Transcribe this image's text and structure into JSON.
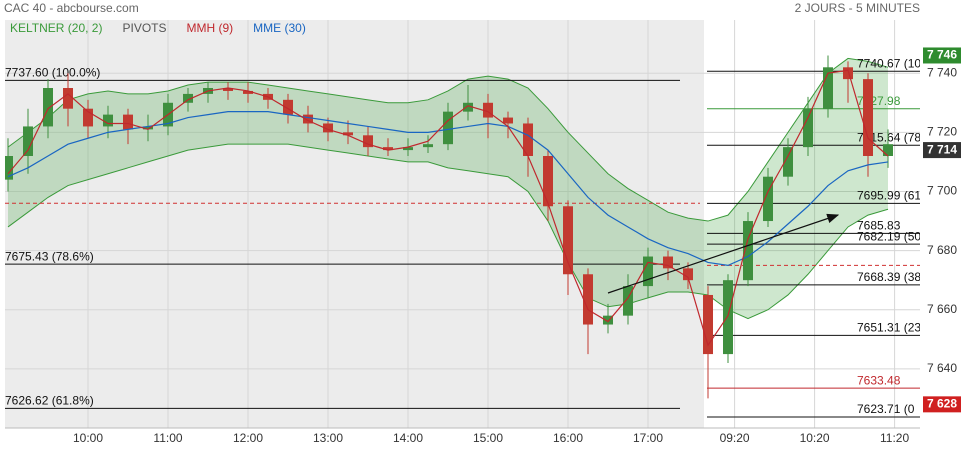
{
  "chart_data": {
    "type": "candlestick",
    "title": "CAC 40 - abcbourse.com",
    "subtitle": "2 JOURS - 5 MINUTES",
    "legend": [
      {
        "name": "KELTNER (20, 2)",
        "color": "#3a9a3a"
      },
      {
        "name": "PIVOTS",
        "color": "#555555"
      },
      {
        "name": "MMH (9)",
        "color": "#c0282d"
      },
      {
        "name": "MME (30)",
        "color": "#1a66c2"
      }
    ],
    "xlim": [
      -0.15,
      45.6
    ],
    "xticks": [
      {
        "value": 4,
        "label": "10:00"
      },
      {
        "value": 8,
        "label": "11:00"
      },
      {
        "value": 12,
        "label": "12:00"
      },
      {
        "value": 16,
        "label": "13:00"
      },
      {
        "value": 20,
        "label": "14:00"
      },
      {
        "value": 24,
        "label": "15:00"
      },
      {
        "value": 28,
        "label": "16:00"
      },
      {
        "value": 32,
        "label": "17:00"
      },
      {
        "value": 36.33,
        "label": "09:20"
      },
      {
        "value": 40.33,
        "label": "10:20"
      },
      {
        "value": 44.33,
        "label": "11:20"
      }
    ],
    "ylim": [
      7620,
      7758
    ],
    "yticks": [
      {
        "value": 7740,
        "label": "7 740"
      },
      {
        "value": 7720,
        "label": "7 720"
      },
      {
        "value": 7700,
        "label": "7 700"
      },
      {
        "value": 7680,
        "label": "7 680"
      },
      {
        "value": 7660,
        "label": "7 660"
      },
      {
        "value": 7640,
        "label": "7 640"
      }
    ],
    "grid": true,
    "up_color": "#3f8f3f",
    "down_color": "#c23a30",
    "candles": {
      "open": [
        7704,
        7712,
        7722,
        7735,
        7728,
        7722,
        7726,
        7721,
        7722,
        7730,
        7733,
        7735,
        7734,
        7733,
        7731,
        7726,
        7723,
        7720,
        7719,
        7715,
        7714,
        7715,
        7716,
        7727,
        7730,
        7725,
        7723,
        7712,
        7695,
        7672,
        7655,
        7658,
        7668,
        7678,
        7674,
        7665,
        7645,
        7670,
        7690,
        7705,
        7715,
        7728,
        7742,
        7738,
        7712
      ],
      "high": [
        7718,
        7728,
        7738,
        7740,
        7731,
        7729,
        7728,
        7726,
        7733,
        7735,
        7737,
        7737,
        7737,
        7735,
        7733,
        7729,
        7725,
        7724,
        7722,
        7718,
        7718,
        7719,
        7730,
        7736,
        7733,
        7727,
        7725,
        7714,
        7697,
        7674,
        7662,
        7672,
        7681,
        7680,
        7676,
        7668,
        7672,
        7693,
        7708,
        7718,
        7732,
        7746,
        7744,
        7740,
        7721
      ],
      "low": [
        7700,
        7706,
        7718,
        7722,
        7718,
        7718,
        7716,
        7717,
        7719,
        7727,
        7730,
        7731,
        7730,
        7728,
        7723,
        7720,
        7717,
        7716,
        7712,
        7712,
        7712,
        7713,
        7714,
        7724,
        7718,
        7718,
        7705,
        7690,
        7665,
        7645,
        7652,
        7655,
        7664,
        7670,
        7667,
        7630,
        7642,
        7668,
        7688,
        7702,
        7712,
        7725,
        7730,
        7705,
        7708
      ],
      "close": [
        7712,
        7722,
        7735,
        7728,
        7722,
        7726,
        7721,
        7722,
        7730,
        7733,
        7735,
        7734,
        7733,
        7731,
        7726,
        7723,
        7720,
        7719,
        7715,
        7714,
        7715,
        7716,
        7727,
        7730,
        7725,
        7723,
        7712,
        7695,
        7672,
        7655,
        7658,
        7668,
        7678,
        7674,
        7670,
        7645,
        7670,
        7690,
        7705,
        7715,
        7728,
        7742,
        7738,
        7712,
        7716
      ]
    },
    "mmh": [
      7706,
      7714,
      7728,
      7733,
      7727,
      7723,
      7723,
      7721,
      7726,
      7731,
      7734,
      7735,
      7734,
      7732,
      7728,
      7724,
      7721,
      7719,
      7716,
      7714,
      7715,
      7717,
      7724,
      7729,
      7727,
      7722,
      7712,
      7696,
      7676,
      7660,
      7656,
      7664,
      7676,
      7675,
      7671,
      7648,
      7658,
      7684,
      7700,
      7712,
      7725,
      7740,
      7741,
      7718,
      7712
    ],
    "mme": [
      7705,
      7708,
      7712,
      7716,
      7718,
      7720,
      7721,
      7722,
      7723,
      7725,
      7726,
      7727,
      7727,
      7727,
      7726,
      7725,
      7724,
      7723,
      7722,
      7721,
      7720,
      7720,
      7721,
      7722,
      7723,
      7722,
      7719,
      7714,
      7706,
      7698,
      7692,
      7688,
      7684,
      7681,
      7679,
      7676,
      7675,
      7678,
      7683,
      7689,
      7695,
      7702,
      7707,
      7709,
      7710
    ],
    "keltner_upper": [
      7715,
      7720,
      7725,
      7731,
      7733,
      7734,
      7733,
      7733,
      7734,
      7736,
      7737,
      7737,
      7737,
      7736,
      7735,
      7734,
      7733,
      7732,
      7731,
      7730,
      7730,
      7731,
      7734,
      7738,
      7739,
      7738,
      7735,
      7728,
      7720,
      7713,
      7706,
      7701,
      7697,
      7693,
      7691,
      7690,
      7692,
      7700,
      7710,
      7720,
      7730,
      7740,
      7745,
      7744,
      7742
    ],
    "keltner_lower": [
      7688,
      7693,
      7698,
      7702,
      7704,
      7706,
      7708,
      7710,
      7712,
      7714,
      7715,
      7716,
      7716,
      7716,
      7716,
      7715,
      7714,
      7713,
      7712,
      7711,
      7710,
      7710,
      7708,
      7707,
      7706,
      7705,
      7700,
      7690,
      7676,
      7664,
      7661,
      7662,
      7664,
      7666,
      7666,
      7665,
      7660,
      7657,
      7660,
      7665,
      7672,
      7680,
      7688,
      7692,
      7694
    ],
    "day1_levels": [
      {
        "value": 7737.6,
        "label": "7737.60  (100.0%)",
        "color": "#111111"
      },
      {
        "value": 7675.43,
        "label": "7675.43  (78.6%)",
        "color": "#111111"
      },
      {
        "value": 7626.62,
        "label": "7626.62  (61.8%)",
        "color": "#111111"
      }
    ],
    "day1_pivot": 7696,
    "day2_levels": [
      {
        "value": 7740.67,
        "label": "7740.67  (10",
        "color": "#111111"
      },
      {
        "value": 7727.98,
        "label": "7727.98",
        "color": "#3a9a3a"
      },
      {
        "value": 7715.64,
        "label": "7715.64  (78",
        "color": "#111111"
      },
      {
        "value": 7695.99,
        "label": "7695.99  (61",
        "color": "#111111"
      },
      {
        "value": 7685.83,
        "label": "7685.83",
        "color": "#111111"
      },
      {
        "value": 7682.19,
        "label": "7682.19  (50",
        "color": "#111111"
      },
      {
        "value": 7668.39,
        "label": "7668.39  (38",
        "color": "#111111"
      },
      {
        "value": 7651.31,
        "label": "7651.31  (23",
        "color": "#111111"
      },
      {
        "value": 7633.48,
        "label": "7633.48",
        "color": "#c0282d"
      },
      {
        "value": 7623.71,
        "label": "7623.71  (0",
        "color": "#111111"
      }
    ],
    "day2_pivot": 7675,
    "price_tags": [
      {
        "value": 7746,
        "label": "7 746",
        "color": "#2e8b2e"
      },
      {
        "value": 7714,
        "label": "7 714",
        "color": "#333333"
      },
      {
        "value": 7628,
        "label": "7 628",
        "color": "#d02020"
      }
    ]
  }
}
